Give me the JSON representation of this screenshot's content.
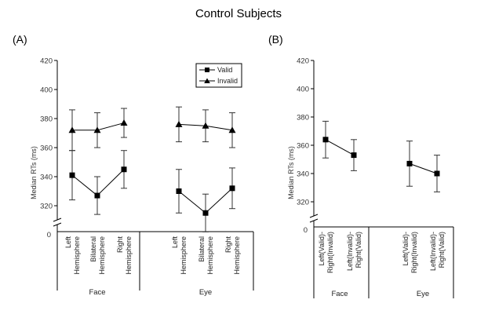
{
  "figure_title": "Control Subjects",
  "chart_data": [
    {
      "type": "line",
      "panel_label": "(A)",
      "ylabel": "Median RTs (ms)",
      "ylim": [
        300,
        420
      ],
      "yticks": [
        320,
        340,
        360,
        380,
        400,
        420
      ],
      "y_break": true,
      "zero_label": "0",
      "legend_placement": "top-right",
      "categories": [
        "Left Hemisphere",
        "Bilateral Hemisphere",
        "Right Hemisphere"
      ],
      "groups": [
        {
          "name": "Face",
          "categories": [
            "Left Hemisphere",
            "Bilateral Hemisphere",
            "Right Hemisphere"
          ]
        },
        {
          "name": "Eye",
          "categories": [
            "Left Hemisphere",
            "Bilateral Hemisphere",
            "Right Hemisphere"
          ]
        }
      ],
      "series": [
        {
          "name": "Valid",
          "marker": "square",
          "values": [
            [
              341,
              327,
              345
            ],
            [
              330,
              315,
              332
            ]
          ],
          "errors": [
            [
              17,
              13,
              13
            ],
            [
              15,
              13,
              14
            ]
          ]
        },
        {
          "name": "Invalid",
          "marker": "triangle",
          "values": [
            [
              372,
              372,
              377
            ],
            [
              376,
              375,
              372
            ]
          ],
          "errors": [
            [
              14,
              12,
              10
            ],
            [
              12,
              11,
              12
            ]
          ]
        }
      ]
    },
    {
      "type": "line",
      "panel_label": "(B)",
      "ylabel": "Median RTs (ms)",
      "ylim": [
        300,
        420
      ],
      "yticks": [
        320,
        340,
        360,
        380,
        400,
        420
      ],
      "y_break": true,
      "zero_label": "0",
      "groups": [
        {
          "name": "Face",
          "categories": [
            "Left(Valid)-Right(Invalid)",
            "Left(Invalid)-Right(Valid)"
          ]
        },
        {
          "name": "Eye",
          "categories": [
            "Left(Valid)-Right(Invalid)",
            "Left(Invalid)-Right(Valid)"
          ]
        }
      ],
      "series": [
        {
          "marker": "square",
          "values": [
            [
              364,
              353
            ],
            [
              347,
              340
            ]
          ],
          "errors": [
            [
              13,
              11
            ],
            [
              16,
              13
            ]
          ]
        }
      ]
    }
  ]
}
